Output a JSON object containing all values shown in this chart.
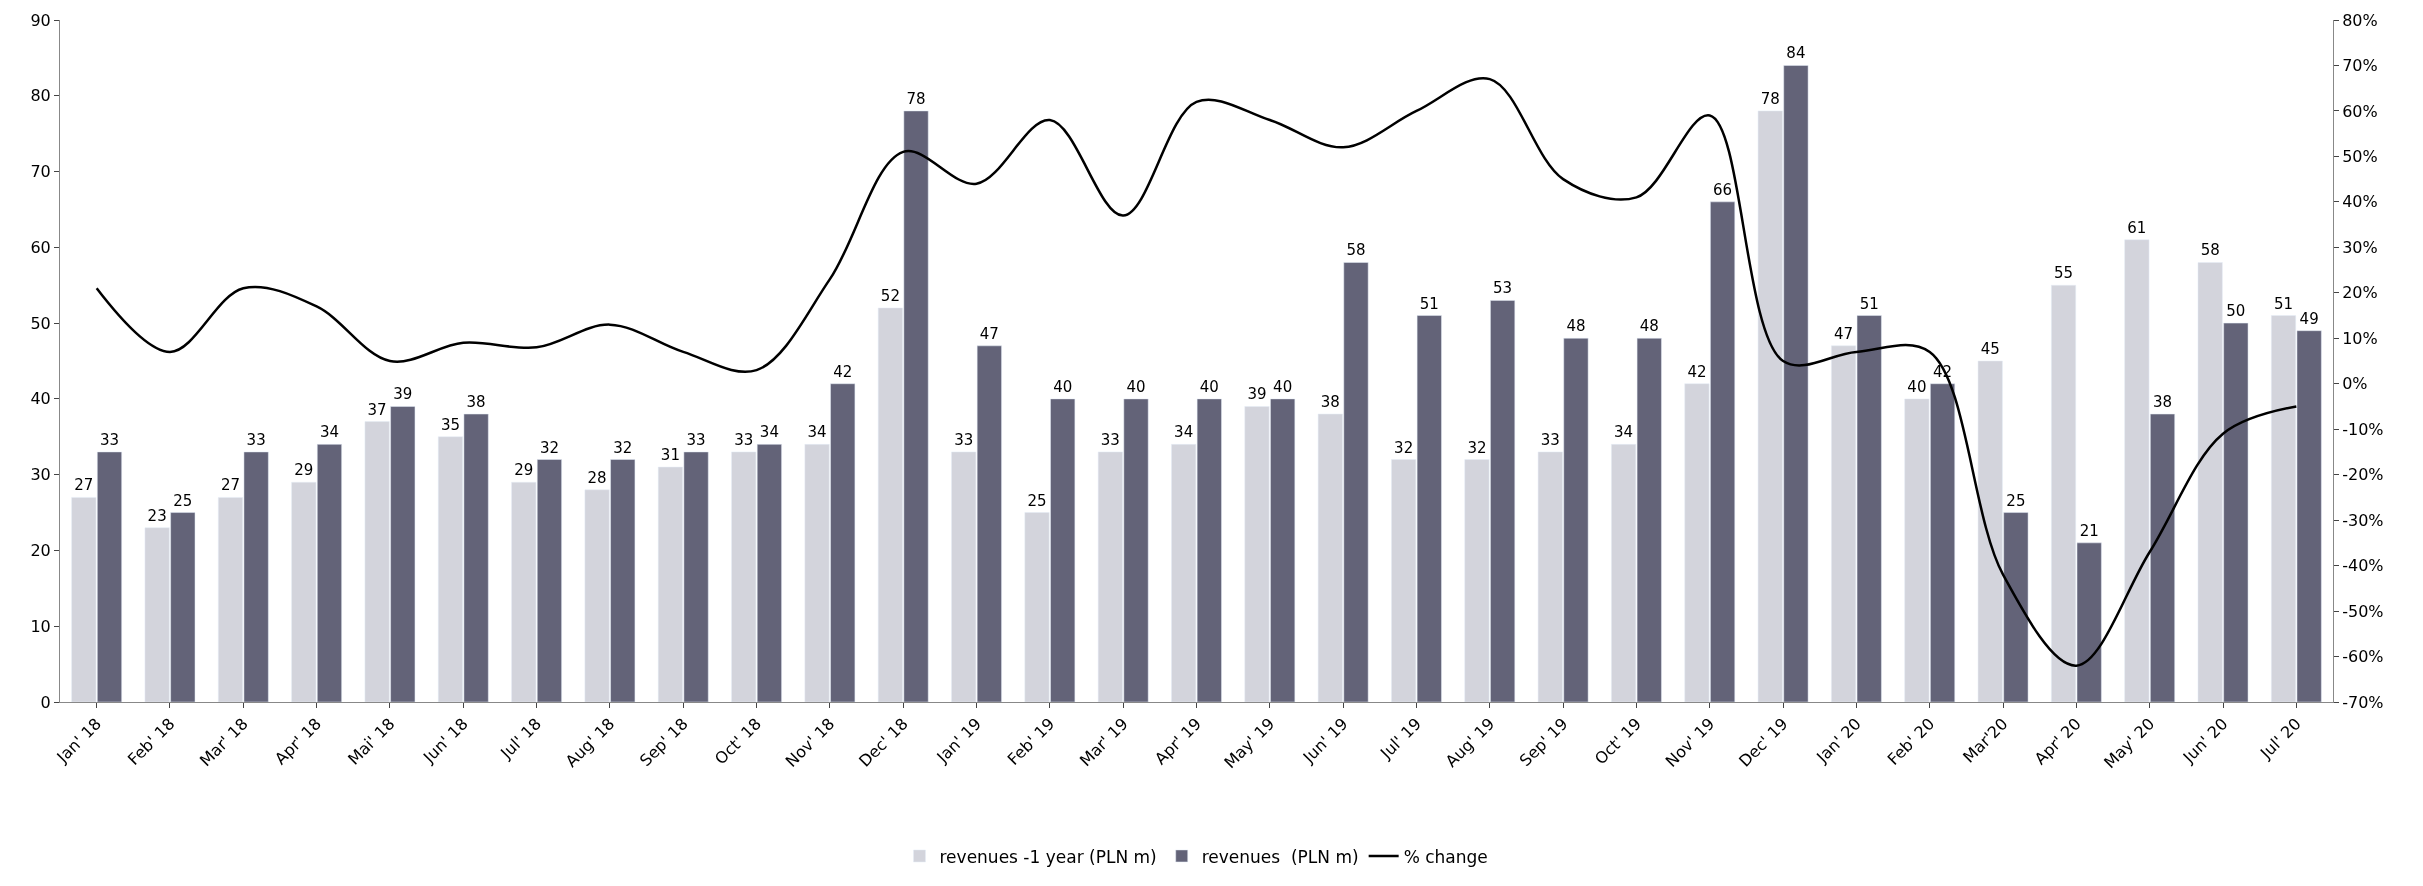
{
  "chart_data": {
    "type": "bar",
    "categories": [
      "Jan' 18",
      "Feb' 18",
      "Mar' 18",
      "Apr' 18",
      "Mai' 18",
      "Jun' 18",
      "Jul' 18",
      "Aug' 18",
      "Sep' 18",
      "Oct' 18",
      "Nov' 18",
      "Dec' 18",
      "Jan' 19",
      "Feb' 19",
      "Mar' 19",
      "Apr' 19",
      "May' 19",
      "Jun' 19",
      "Jul' 19",
      "Aug' 19",
      "Sep' 19",
      "Oct' 19",
      "Nov' 19",
      "Dec' 19",
      "Jan' 20",
      "Feb' 20",
      "Mar'20",
      "Apr' 20",
      "May' 20",
      "Jun' 20",
      "Jul' 20"
    ],
    "series": [
      {
        "name": "revenues -1 year (PLN m)",
        "color": "#d3d4dc",
        "values": [
          27,
          23,
          27,
          29,
          37,
          35,
          29,
          28,
          31,
          33,
          34,
          52,
          33,
          25,
          33,
          34,
          39,
          38,
          32,
          32,
          33,
          34,
          42,
          78,
          47,
          40,
          45,
          55,
          61,
          58,
          51
        ],
        "value_labels": [
          "27",
          "23",
          "27",
          "29",
          "37",
          "35",
          "29",
          "28",
          "31",
          "33",
          "34",
          "52",
          "33",
          "25",
          "33",
          "34",
          "39",
          "38",
          "32",
          "32",
          "33",
          "34",
          "42",
          "78",
          "47",
          "40",
          "45",
          "55",
          "61",
          "58",
          "51"
        ]
      },
      {
        "name": "revenues  (PLN m)",
        "color": "#636378",
        "values": [
          33,
          25,
          33,
          34,
          39,
          38,
          32,
          32,
          33,
          34,
          42,
          78,
          47,
          40,
          40,
          40,
          40,
          58,
          51,
          53,
          48,
          48,
          66,
          84,
          51,
          42,
          25,
          21,
          38,
          50,
          49
        ],
        "value_labels": [
          "33",
          "25",
          "33",
          "34",
          "39",
          "38",
          "32",
          "32",
          "33",
          "34",
          "42",
          "78",
          "47",
          "40",
          "40",
          "40",
          "40",
          "58",
          "51",
          "53",
          "48",
          "48",
          "66",
          "84",
          "51",
          "42",
          "25",
          "21",
          "38",
          "50",
          "49"
        ]
      },
      {
        "name": "% change",
        "type": "line",
        "axis": "y2",
        "color": "#000000",
        "values": [
          21,
          7,
          21,
          17,
          5,
          9,
          8,
          13,
          7,
          3,
          23,
          51,
          44,
          58,
          37,
          62,
          58,
          52,
          60,
          67,
          45,
          41,
          59,
          5,
          7,
          7,
          -42,
          -62,
          -37,
          -11,
          -5
        ]
      }
    ],
    "ylim": [
      0,
      90
    ],
    "yticks": [
      0,
      10,
      20,
      30,
      40,
      50,
      60,
      70,
      80,
      90
    ],
    "y2lim": [
      -70,
      80
    ],
    "y2ticks": [
      {
        "value": -70,
        "label": "-70%"
      },
      {
        "value": -60,
        "label": "-60%"
      },
      {
        "value": -50,
        "label": "-50%"
      },
      {
        "value": -40,
        "label": "-40%"
      },
      {
        "value": -30,
        "label": "-30%"
      },
      {
        "value": -20,
        "label": "-20%"
      },
      {
        "value": -10,
        "label": "-10%"
      },
      {
        "value": 0,
        "label": "0%"
      },
      {
        "value": 10,
        "label": "10%"
      },
      {
        "value": 20,
        "label": "20%"
      },
      {
        "value": 30,
        "label": "30%"
      },
      {
        "value": 40,
        "label": "40%"
      },
      {
        "value": 50,
        "label": "50%"
      },
      {
        "value": 60,
        "label": "60%"
      },
      {
        "value": 70,
        "label": "70%"
      },
      {
        "value": 80,
        "label": "80%"
      }
    ],
    "legend": "bottom",
    "marker": "none",
    "line_style": "solid"
  }
}
